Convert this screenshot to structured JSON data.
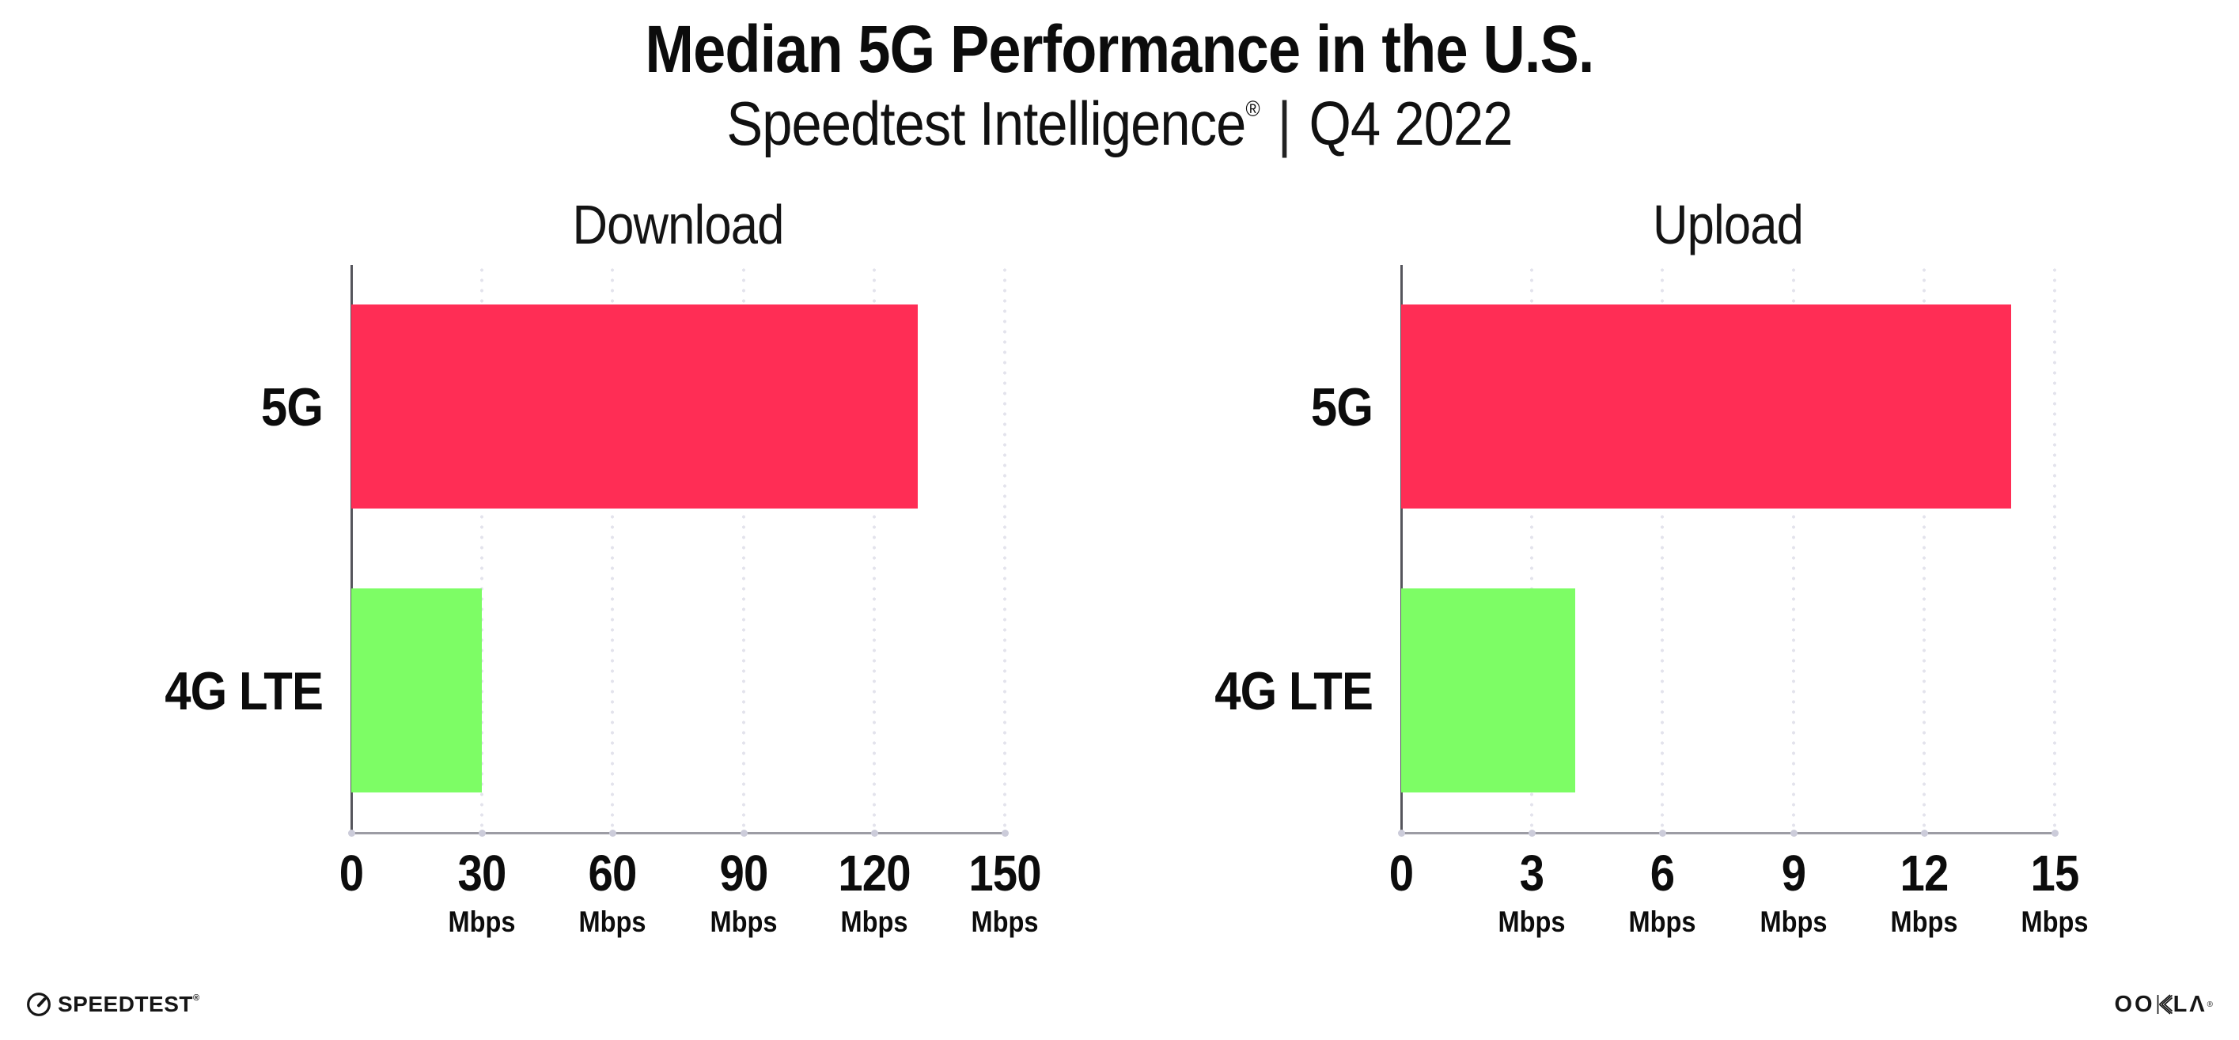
{
  "header": {
    "title": "Median 5G Performance in the U.S.",
    "subtitle_brand": "Speedtest Intelligence",
    "subtitle_registered": "®",
    "subtitle_separator": "|",
    "subtitle_period": "Q4 2022"
  },
  "chart_data": [
    {
      "type": "bar",
      "orientation": "horizontal",
      "title": "Download",
      "categories": [
        "5G",
        "4G LTE"
      ],
      "values": [
        130,
        30
      ],
      "unit": "Mbps",
      "xlabel": "",
      "ylabel": "",
      "xlim": [
        0,
        150
      ],
      "xticks": [
        0,
        30,
        60,
        90,
        120,
        150
      ],
      "bar_colors": [
        "#ff2d55",
        "#7dfd65"
      ],
      "grid": "dotted vertical gridlines at each tick",
      "legend": "none"
    },
    {
      "type": "bar",
      "orientation": "horizontal",
      "title": "Upload",
      "categories": [
        "5G",
        "4G LTE"
      ],
      "values": [
        14,
        4
      ],
      "unit": "Mbps",
      "xlabel": "",
      "ylabel": "",
      "xlim": [
        0,
        15
      ],
      "xticks": [
        0,
        3,
        6,
        9,
        12,
        15
      ],
      "bar_colors": [
        "#ff2d55",
        "#7dfd65"
      ],
      "grid": "dotted vertical gridlines at each tick",
      "legend": "none"
    }
  ],
  "colors": {
    "bar_5g": "#ff2d55",
    "bar_4g_lte": "#7dfd65",
    "gridline": "#e3e3ec",
    "x_axis_line": "#9c9ca4",
    "y_axis_line": "#55555c",
    "text": "#0c0c0c",
    "background": "#ffffff"
  },
  "footer": {
    "speedtest_text": "SPEEDTEST",
    "speedtest_registered": "®",
    "ookla_oo": "OO",
    "ookla_la": "LΛ",
    "ookla_registered": "®"
  }
}
